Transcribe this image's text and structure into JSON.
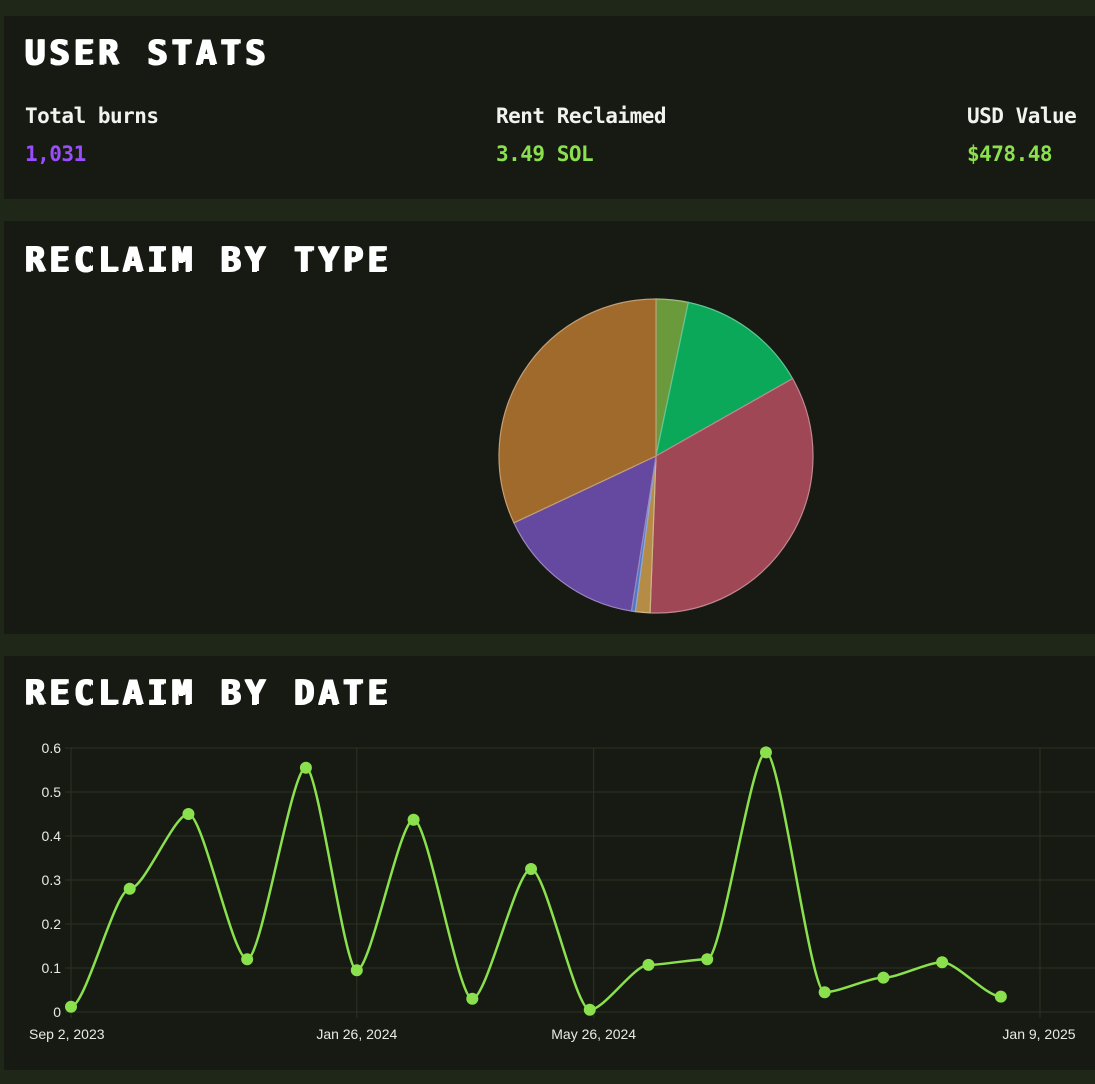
{
  "user_stats": {
    "title": "USER STATS",
    "items": [
      {
        "label": "Total burns",
        "value": "1,031",
        "color": "#9a4dff"
      },
      {
        "label": "Rent Reclaimed",
        "value": "3.49 SOL",
        "color": "#8be04e"
      },
      {
        "label": "USD Value",
        "value": "$478.48",
        "color": "#8be04e"
      }
    ]
  },
  "reclaim_by_type": {
    "title": "RECLAIM BY TYPE"
  },
  "reclaim_by_date": {
    "title": "RECLAIM BY DATE"
  },
  "chart_data": [
    {
      "type": "pie",
      "title": "RECLAIM BY TYPE",
      "slices": [
        {
          "value": 3.3,
          "color": "#6b9a3c"
        },
        {
          "value": 13.5,
          "color": "#0aa858"
        },
        {
          "value": 33.8,
          "color": "#a04756"
        },
        {
          "value": 1.5,
          "color": "#b58c46"
        },
        {
          "value": 0.4,
          "color": "#4f78c4"
        },
        {
          "value": 15.5,
          "color": "#65489f"
        },
        {
          "value": 32.0,
          "color": "#a06a2c"
        }
      ]
    },
    {
      "type": "line",
      "title": "RECLAIM BY DATE",
      "x": [
        "2023-09-02",
        "2023-10-02",
        "2023-11-01",
        "2023-12-01",
        "2023-12-31",
        "2024-01-26",
        "2024-02-25",
        "2024-03-26",
        "2024-04-25",
        "2024-05-26",
        "2024-05-26",
        "2024-06-25",
        "2024-07-25",
        "2024-08-24",
        "2024-09-24",
        "2024-10-24",
        "2024-11-23",
        "2024-12-23",
        "2025-01-09",
        "2025-02-08"
      ],
      "x_numeric_note": "",
      "points": [
        {
          "x": "2023-09-02",
          "y": 0.012
        },
        {
          "x": "2023-10-02",
          "y": 0.28
        },
        {
          "x": "2023-11-01",
          "y": 0.45
        },
        {
          "x": "2023-12-01",
          "y": 0.12
        },
        {
          "x": "2023-12-31",
          "y": 0.555
        },
        {
          "x": "2024-01-26",
          "y": 0.095
        },
        {
          "x": "2024-02-24",
          "y": 0.437
        },
        {
          "x": "2024-03-25",
          "y": 0.03
        },
        {
          "x": "2024-04-24",
          "y": 0.325
        },
        {
          "x": "2024-05-24",
          "y": 0.005
        },
        {
          "x": "2024-06-23",
          "y": 0.107
        },
        {
          "x": "2024-07-23",
          "y": 0.12
        },
        {
          "x": "2024-08-22",
          "y": 0.59
        },
        {
          "x": "2024-09-21",
          "y": 0.045
        },
        {
          "x": "2024-10-21",
          "y": 0.078
        },
        {
          "x": "2024-11-20",
          "y": 0.113
        },
        {
          "x": "2024-12-20",
          "y": 0.035
        }
      ],
      "xlabel": "",
      "ylabel": "",
      "ylim": [
        0,
        0.6
      ],
      "y_ticks": [
        "0",
        "0.1",
        "0.2",
        "0.3",
        "0.4",
        "0.5",
        "0.6"
      ],
      "x_tick_labels": [
        "Sep 2, 2023",
        "Jan 26, 2024",
        "May 26, 2024",
        "Jan 9, 2025"
      ],
      "line_color": "#8be04e",
      "grid": true
    }
  ]
}
